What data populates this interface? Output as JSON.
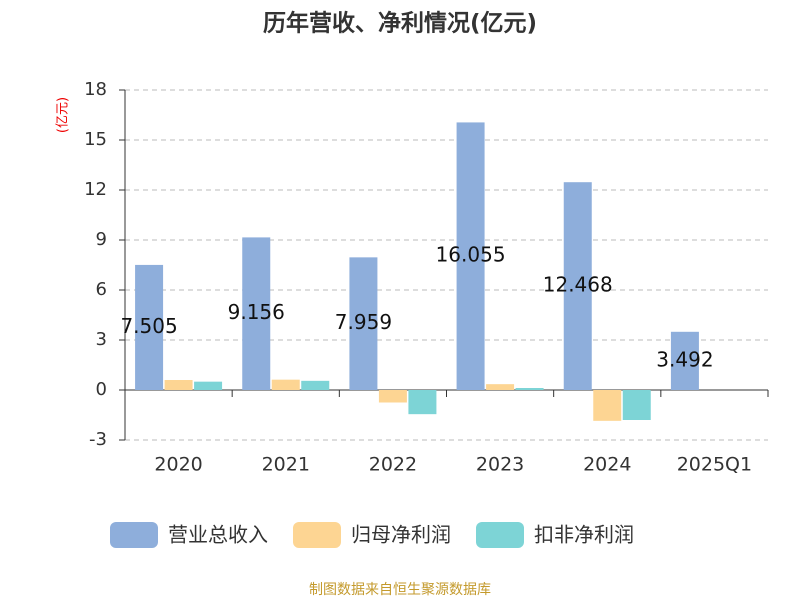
{
  "chart_data": {
    "type": "bar",
    "title": "历年营收、净利情况(亿元)",
    "y_axis_label": "(亿元)",
    "categories": [
      "2020",
      "2021",
      "2022",
      "2023",
      "2024",
      "2025Q1"
    ],
    "series": [
      {
        "name": "营业总收入",
        "color": "#8eaedb",
        "values": [
          7.505,
          9.156,
          7.959,
          16.055,
          12.468,
          3.492
        ],
        "show_labels": true
      },
      {
        "name": "归母净利润",
        "color": "#fdd593",
        "values": [
          0.6,
          0.62,
          -0.75,
          0.35,
          -1.85,
          null
        ]
      },
      {
        "name": "扣非净利润",
        "color": "#7dd4d6",
        "values": [
          0.5,
          0.55,
          -1.45,
          0.12,
          -1.8,
          null
        ]
      }
    ],
    "ylim": [
      -3,
      18
    ],
    "yticks": [
      -3,
      0,
      3,
      6,
      9,
      12,
      15,
      18
    ],
    "grid": true,
    "legend": "bottom",
    "source": "制图数据来自恒生聚源数据库"
  }
}
